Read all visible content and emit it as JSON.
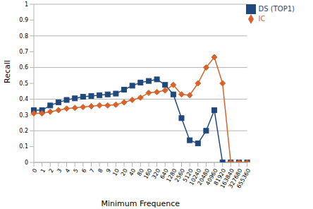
{
  "chart_data": {
    "type": "line",
    "x_label": "Minimum Frequence",
    "y_label": "Recall",
    "categories": [
      "0",
      "1",
      "2",
      "3",
      "4",
      "5",
      "6",
      "7",
      "8",
      "9",
      "10",
      "20",
      "40",
      "80",
      "160",
      "320",
      "640",
      "1280",
      "2560",
      "5120",
      "10240",
      "20480",
      "40960",
      "81920",
      "163840",
      "327680",
      "655360"
    ],
    "series": [
      {
        "name": "DS (TOP1)",
        "color": "#1f497d",
        "marker": "square",
        "values": [
          0.33,
          0.33,
          0.36,
          0.38,
          0.395,
          0.405,
          0.415,
          0.42,
          0.425,
          0.43,
          0.435,
          0.46,
          0.485,
          0.505,
          0.515,
          0.525,
          0.49,
          0.43,
          0.28,
          0.14,
          0.12,
          0.2,
          0.33,
          0,
          0,
          0,
          0
        ]
      },
      {
        "name": "IC",
        "color": "#d9622b",
        "marker": "diamond",
        "values": [
          0.31,
          0.31,
          0.32,
          0.33,
          0.34,
          0.345,
          0.35,
          0.355,
          0.36,
          0.36,
          0.365,
          0.38,
          0.395,
          0.41,
          0.44,
          0.445,
          0.455,
          0.49,
          0.43,
          0.425,
          0.5,
          0.6,
          0.665,
          0.5,
          0,
          0,
          0
        ]
      }
    ],
    "ylim": [
      0,
      1
    ],
    "yticks": [
      0,
      0.1,
      0.2,
      0.3,
      0.4,
      0.5,
      0.6,
      0.7,
      0.8,
      0.9,
      1
    ],
    "grid": true,
    "legend": "upper right"
  }
}
